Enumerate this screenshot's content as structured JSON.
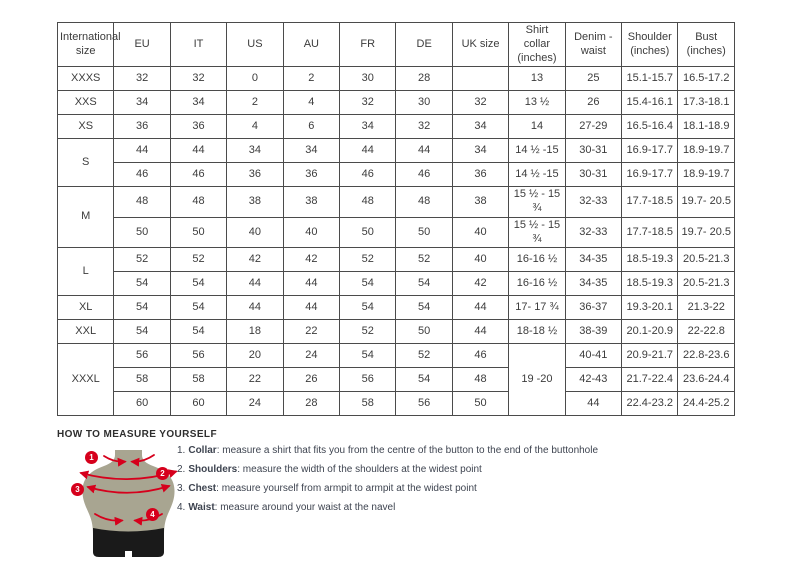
{
  "colors": {
    "accent_red": "#d6001c",
    "mannequin": "#a8a591",
    "shorts": "#1a1a1a",
    "table_border": "#4b4b4b",
    "text": "#3c3c3c"
  },
  "table": {
    "columns": [
      "International size",
      "EU",
      "IT",
      "US",
      "AU",
      "FR",
      "DE",
      "UK size",
      "Shirt collar (inches)",
      "Denim - waist",
      "Shoulder (inches)",
      "Bust (inches)"
    ],
    "rows": [
      {
        "size": "XXXS",
        "size_rowspan": 1,
        "cells": [
          "32",
          "32",
          "0",
          "2",
          "30",
          "28",
          "",
          "13",
          "25",
          "15.1-15.7",
          "16.5-17.2"
        ]
      },
      {
        "size": "XXS",
        "size_rowspan": 1,
        "cells": [
          "34",
          "34",
          "2",
          "4",
          "32",
          "30",
          "32",
          "13 ½",
          "26",
          "15.4-16.1",
          "17.3-18.1"
        ]
      },
      {
        "size": "XS",
        "size_rowspan": 1,
        "cells": [
          "36",
          "36",
          "4",
          "6",
          "34",
          "32",
          "34",
          "14",
          "27-29",
          "16.5-16.4",
          "18.1-18.9"
        ]
      },
      {
        "size": "S",
        "size_rowspan": 2,
        "cells": [
          "44",
          "44",
          "34",
          "34",
          "44",
          "44",
          "34",
          "14 ½ -15",
          "30-31",
          "16.9-17.7",
          "18.9-19.7"
        ]
      },
      {
        "cells": [
          "46",
          "46",
          "36",
          "36",
          "46",
          "46",
          "36",
          "14 ½ -15",
          "30-31",
          "16.9-17.7",
          "18.9-19.7"
        ]
      },
      {
        "size": "M",
        "size_rowspan": 2,
        "cells": [
          "48",
          "48",
          "38",
          "38",
          "48",
          "48",
          "38",
          "15 ½ - 15 ¾",
          "32-33",
          "17.7-18.5",
          "19.7- 20.5"
        ]
      },
      {
        "cells": [
          "50",
          "50",
          "40",
          "40",
          "50",
          "50",
          "40",
          "15 ½ - 15 ¾",
          "32-33",
          "17.7-18.5",
          "19.7- 20.5"
        ]
      },
      {
        "size": "L",
        "size_rowspan": 2,
        "cells": [
          "52",
          "52",
          "42",
          "42",
          "52",
          "52",
          "40",
          "16-16 ½",
          "34-35",
          "18.5-19.3",
          "20.5-21.3"
        ]
      },
      {
        "cells": [
          "54",
          "54",
          "44",
          "44",
          "54",
          "54",
          "42",
          "16-16 ½",
          "34-35",
          "18.5-19.3",
          "20.5-21.3"
        ]
      },
      {
        "size": "XL",
        "size_rowspan": 1,
        "cells": [
          "54",
          "54",
          "44",
          "44",
          "54",
          "54",
          "44",
          "17- 17 ¾",
          "36-37",
          "19.3-20.1",
          "21.3-22"
        ]
      },
      {
        "size": "XXL",
        "size_rowspan": 1,
        "cells": [
          "54",
          "54",
          "18",
          "22",
          "52",
          "50",
          "44",
          "18-18 ½",
          "38-39",
          "20.1-20.9",
          "22-22.8"
        ]
      },
      {
        "size": "XXXL",
        "size_rowspan": 3,
        "cells": [
          "56",
          "56",
          "20",
          "24",
          "54",
          "52",
          "46",
          {
            "text": "19 -20",
            "rowspan": 3
          },
          "40-41",
          "20.9-21.7",
          "22.8-23.6"
        ]
      },
      {
        "cells": [
          "58",
          "58",
          "22",
          "26",
          "56",
          "54",
          "48",
          "42-43",
          "21.7-22.4",
          "23.6-24.4"
        ]
      },
      {
        "cells": [
          "60",
          "60",
          "24",
          "28",
          "58",
          "56",
          "50",
          "44",
          "22.4-23.2",
          "24.4-25.2"
        ]
      }
    ]
  },
  "measure": {
    "heading": "HOW TO MEASURE YOURSELF",
    "steps": [
      {
        "marker": "1",
        "num": "1.",
        "label": "Collar",
        "text": ": measure a shirt that fits you from the centre of the button to the end of the buttonhole"
      },
      {
        "marker": "2",
        "num": "2.",
        "label": "Shoulders",
        "text": ": measure the width of the shoulders at the widest point"
      },
      {
        "marker": "3",
        "num": "3.",
        "label": "Chest",
        "text": ": measure yourself from armpit to armpit at the widest point"
      },
      {
        "marker": "4",
        "num": "4.",
        "label": "Waist",
        "text": ": measure around your waist at the navel"
      }
    ]
  }
}
